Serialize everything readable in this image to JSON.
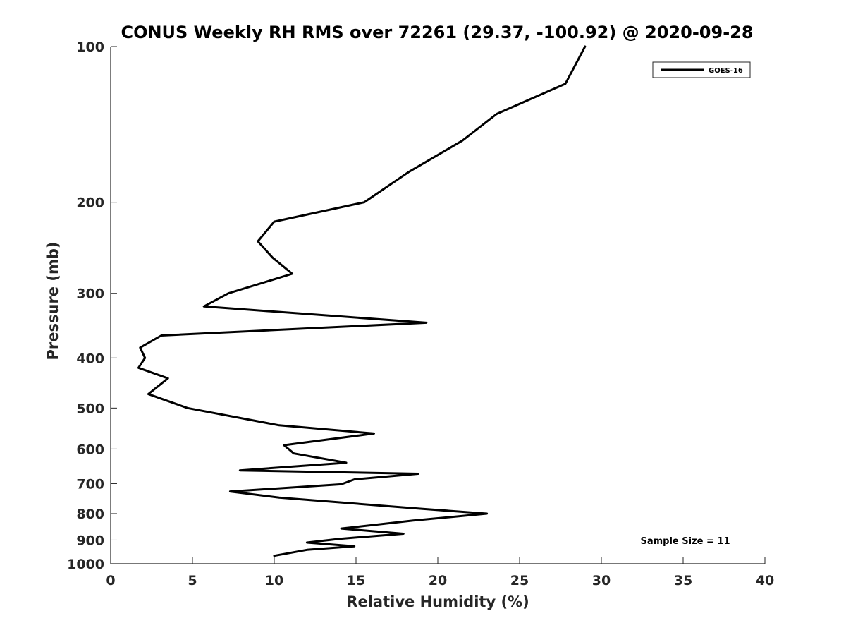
{
  "chart_data": {
    "type": "line",
    "title": "CONUS Weekly RH RMS over 72261 (29.37, -100.92) @ 2020-09-28",
    "xlabel": "Relative Humidity (%)",
    "ylabel": "Pressure (mb)",
    "xlim": [
      0,
      40
    ],
    "ylim": [
      1000,
      100
    ],
    "y_scale": "log",
    "y_reversed": true,
    "grid": false,
    "legend_position": "top-right",
    "x_ticks": [
      0,
      5,
      10,
      15,
      20,
      25,
      30,
      35,
      40
    ],
    "x_tick_labels": [
      "0",
      "5",
      "10",
      "15",
      "20",
      "25",
      "30",
      "35",
      "40"
    ],
    "y_ticks": [
      100,
      200,
      300,
      400,
      500,
      600,
      700,
      800,
      900,
      1000
    ],
    "y_tick_labels": [
      "100",
      "200",
      "300",
      "400",
      "500",
      "600",
      "700",
      "800",
      "900",
      "1000"
    ],
    "series": [
      {
        "name": "GOES-16",
        "color": "#000000",
        "x": [
          29.0,
          27.8,
          23.6,
          21.5,
          18.2,
          15.5,
          10.0,
          9.0,
          9.9,
          11.1,
          7.2,
          5.7,
          19.3,
          3.1,
          1.8,
          2.1,
          1.7,
          3.5,
          2.3,
          4.7,
          10.3,
          16.1,
          10.6,
          11.2,
          14.4,
          7.9,
          18.8,
          14.9,
          14.1,
          7.3,
          10.3,
          19.0,
          23.0,
          18.5,
          14.1,
          17.9,
          14.0,
          12.0,
          14.9,
          12.0,
          10.0
        ],
        "y": [
          100,
          118,
          135,
          152,
          175,
          200,
          218,
          238,
          256,
          275,
          300,
          318,
          342,
          362,
          382,
          400,
          418,
          438,
          470,
          500,
          540,
          560,
          590,
          612,
          638,
          660,
          670,
          687,
          702,
          725,
          745,
          783,
          800,
          825,
          855,
          875,
          895,
          910,
          925,
          940,
          965
        ]
      }
    ],
    "annotation": "Sample Size = 11"
  }
}
